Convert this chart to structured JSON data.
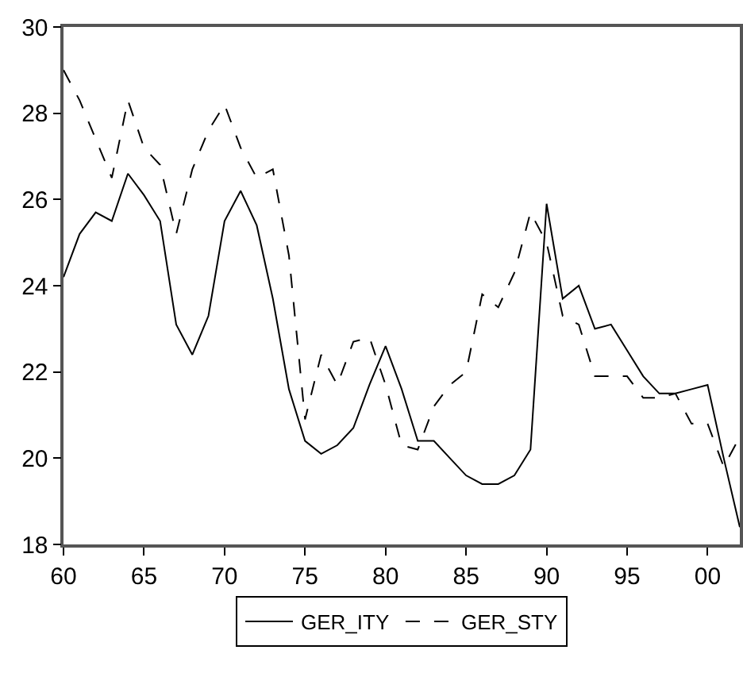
{
  "chart_data": {
    "type": "line",
    "x": [
      1960,
      1961,
      1962,
      1963,
      1964,
      1965,
      1966,
      1967,
      1968,
      1969,
      1970,
      1971,
      1972,
      1973,
      1974,
      1975,
      1976,
      1977,
      1978,
      1979,
      1980,
      1981,
      1982,
      1983,
      1984,
      1985,
      1986,
      1987,
      1988,
      1989,
      1990,
      1991,
      1992,
      1993,
      1994,
      1995,
      1996,
      1997,
      1998,
      1999,
      2000,
      2001,
      2002
    ],
    "series": [
      {
        "name": "GER_ITY",
        "color": "#000000",
        "line_style": "solid",
        "values": [
          24.2,
          25.2,
          25.7,
          25.5,
          26.6,
          26.1,
          25.5,
          23.1,
          22.4,
          23.3,
          25.5,
          26.2,
          25.4,
          23.7,
          21.6,
          20.4,
          20.1,
          20.3,
          20.7,
          21.7,
          22.6,
          21.6,
          20.4,
          20.4,
          20.0,
          19.6,
          19.4,
          19.4,
          19.6,
          20.2,
          25.9,
          23.7,
          24.0,
          23.0,
          23.1,
          22.5,
          21.9,
          21.5,
          21.5,
          21.6,
          21.7,
          20.0,
          18.4
        ]
      },
      {
        "name": "GER_STY",
        "color": "#000000",
        "line_style": "dashed",
        "values": [
          29.0,
          28.3,
          27.4,
          26.5,
          28.3,
          27.2,
          26.8,
          25.2,
          26.7,
          27.6,
          28.2,
          27.2,
          26.5,
          26.7,
          24.7,
          20.9,
          22.4,
          21.7,
          22.7,
          22.8,
          21.7,
          20.3,
          20.2,
          21.2,
          21.7,
          22.0,
          23.8,
          23.5,
          24.3,
          25.7,
          25.0,
          23.3,
          23.1,
          21.9,
          21.9,
          21.9,
          21.4,
          21.4,
          21.5,
          20.8,
          20.8,
          19.8,
          20.5
        ]
      }
    ],
    "xlim": [
      1960,
      2002
    ],
    "xticks": [
      {
        "value": 1960,
        "label": "60"
      },
      {
        "value": 1965,
        "label": "65"
      },
      {
        "value": 1970,
        "label": "70"
      },
      {
        "value": 1975,
        "label": "75"
      },
      {
        "value": 1980,
        "label": "80"
      },
      {
        "value": 1985,
        "label": "85"
      },
      {
        "value": 1990,
        "label": "90"
      },
      {
        "value": 1995,
        "label": "95"
      },
      {
        "value": 2000,
        "label": "00"
      }
    ],
    "ylim": [
      18,
      30
    ],
    "yticks": [
      18,
      20,
      22,
      24,
      26,
      28,
      30
    ],
    "grid": false,
    "legend": "bottom",
    "marker": "none"
  }
}
